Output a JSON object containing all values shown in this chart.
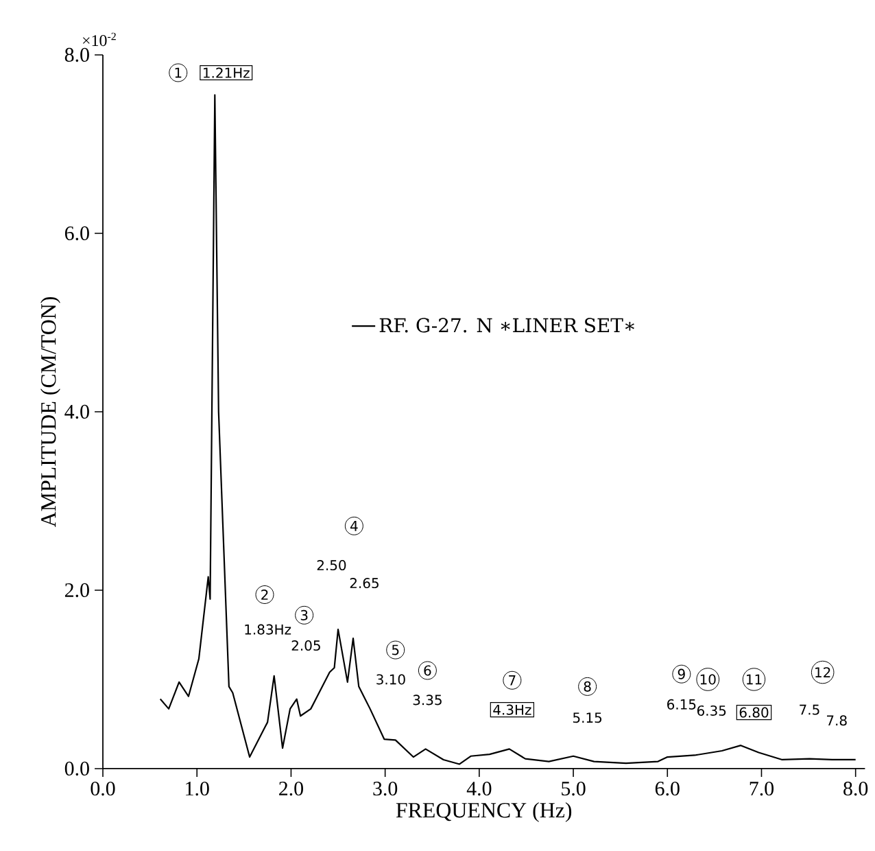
{
  "chart_data": {
    "type": "line",
    "xlabel": "FREQUENCY  (Hz)",
    "ylabel": "AMPLITUDE  (CM/TON)",
    "xlim": [
      0,
      8.1
    ],
    "ylim": [
      0,
      8
    ],
    "xticks": [
      {
        "value": 0,
        "label": "0.0"
      },
      {
        "value": 1,
        "label": "1.0"
      },
      {
        "value": 2,
        "label": "2.0"
      },
      {
        "value": 3,
        "label": "3.0"
      },
      {
        "value": 4,
        "label": "4.0"
      },
      {
        "value": 5,
        "label": "5.0"
      },
      {
        "value": 6,
        "label": "6.0"
      },
      {
        "value": 7,
        "label": "7.0"
      },
      {
        "value": 8,
        "label": "8.0"
      }
    ],
    "yticks": [
      {
        "value": 0,
        "label": "0.0"
      },
      {
        "value": 2,
        "label": "2.0"
      },
      {
        "value": 4,
        "label": "4.0"
      },
      {
        "value": 6,
        "label": "6.0"
      },
      {
        "value": 8,
        "label": "8.0"
      }
    ],
    "grid": false,
    "legend": "center",
    "marker": "none",
    "line_style": "solid",
    "series": [
      {
        "name": "RF. G-27. N   ∗LINER SET∗",
        "color": "#000000",
        "x": [
          0.61,
          0.7,
          0.81,
          0.91,
          1.02,
          1.12,
          1.14,
          1.19,
          1.23,
          1.34,
          1.38,
          1.56,
          1.72,
          1.75,
          1.82,
          1.91,
          1.99,
          2.06,
          2.1,
          2.21,
          2.41,
          2.46,
          2.5,
          2.6,
          2.66,
          2.72,
          2.84,
          2.99,
          3.11,
          3.3,
          3.43,
          3.62,
          3.79,
          3.91,
          4.11,
          4.32,
          4.49,
          4.74,
          5.0,
          5.22,
          5.56,
          5.9,
          6.0,
          6.29,
          6.58,
          6.78,
          6.97,
          7.22,
          7.51,
          7.75,
          8.0
        ],
        "values": [
          0.78,
          0.67,
          0.97,
          0.81,
          1.23,
          2.15,
          1.9,
          7.55,
          4.0,
          0.92,
          0.85,
          0.13,
          0.46,
          0.52,
          1.04,
          0.23,
          0.67,
          0.78,
          0.59,
          0.67,
          1.08,
          1.13,
          1.56,
          0.97,
          1.46,
          0.92,
          0.67,
          0.33,
          0.32,
          0.13,
          0.22,
          0.1,
          0.05,
          0.14,
          0.16,
          0.22,
          0.11,
          0.08,
          0.14,
          0.08,
          0.06,
          0.08,
          0.13,
          0.15,
          0.2,
          0.26,
          0.18,
          0.1,
          0.11,
          0.1,
          0.1
        ]
      }
    ],
    "annotations": [
      "×10$^{-2}$",
      "1",
      "1.21Hz",
      "2",
      "1.83Hz",
      "3",
      "2.05",
      "4",
      "2.50",
      "2.65",
      "5",
      "3.10",
      "6",
      "3.35",
      "7",
      "4.3Hz",
      "8",
      "5.15",
      "9",
      "6.15",
      "10",
      "6.35",
      "11",
      "6.80",
      "12",
      "7.5",
      "7.8"
    ]
  }
}
